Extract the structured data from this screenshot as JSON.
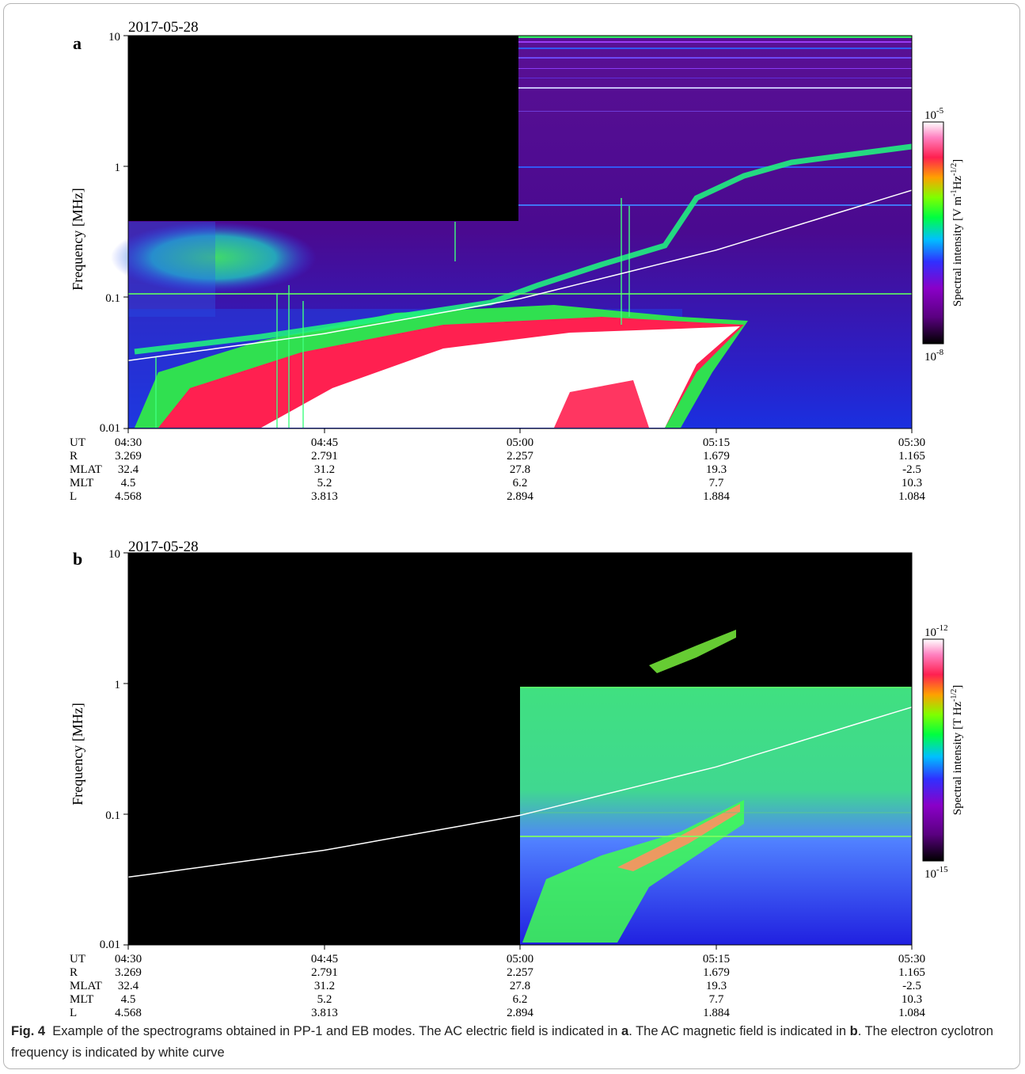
{
  "figure": {
    "caption_label": "Fig. 4",
    "caption_text": "Example of the spectrograms obtained in PP-1 and EB modes. The AC electric field is indicated in ",
    "caption_a": "a",
    "caption_mid": ". The AC magnetic field is indicated in ",
    "caption_b": "b",
    "caption_end": ". The electron cyclotron frequency is indicated by white curve"
  },
  "colors": {
    "background_panel": "#000000",
    "background_fill_a": "#4a0a8c",
    "cyclotron_curve": "#ffffff",
    "colorbar_stops": [
      "#000000",
      "#5a0080",
      "#8a00c8",
      "#3030ff",
      "#00c0ff",
      "#00ff40",
      "#80ff00",
      "#ffa000",
      "#ff2050",
      "#ff80c0",
      "#ffffff"
    ]
  },
  "chart_data": [
    {
      "type": "heatmap",
      "panel_label": "a",
      "date_label": "2017-05-28",
      "ylabel": "Frequency [MHz]",
      "yscale": "log",
      "ylim": [
        0.01,
        10
      ],
      "y_ticks": [
        "0.01",
        "0.1",
        "1",
        "10"
      ],
      "xlim": [
        "04:30",
        "05:30"
      ],
      "colorbar": {
        "label_main": "Spectral intensity [V m",
        "label_sup1": "-1",
        "label_mid": "Hz",
        "label_sup2": "-1/2",
        "label_end": "]",
        "top_base": "10",
        "top_exp": "-5",
        "bottom_base": "10",
        "bottom_exp": "-8"
      },
      "orbit_table": {
        "row_labels": [
          "UT",
          "R",
          "MLAT",
          "MLT",
          "L"
        ],
        "columns": [
          [
            "04:30",
            "3.269",
            "32.4",
            "4.5",
            "4.568"
          ],
          [
            "04:45",
            "2.791",
            "31.2",
            "5.2",
            "3.813"
          ],
          [
            "05:00",
            "2.257",
            "27.8",
            "6.2",
            "2.894"
          ],
          [
            "05:15",
            "1.679",
            "19.3",
            "7.7",
            "1.884"
          ],
          [
            "05:30",
            "1.165",
            "-2.5",
            "10.3",
            "1.084"
          ]
        ]
      },
      "cyclotron_curve": {
        "time_min": [
          0,
          15,
          30,
          45,
          60
        ],
        "freq_mhz": [
          0.033,
          0.053,
          0.098,
          0.23,
          0.66
        ]
      }
    },
    {
      "type": "heatmap",
      "panel_label": "b",
      "date_label": "2017-05-28",
      "ylabel": "Frequency [MHz]",
      "yscale": "log",
      "ylim": [
        0.01,
        10
      ],
      "y_ticks": [
        "0.01",
        "0.1",
        "1",
        "10"
      ],
      "xlim": [
        "04:30",
        "05:30"
      ],
      "colorbar": {
        "label_main": "Spectral intensity [T Hz",
        "label_sup1": "",
        "label_mid": "",
        "label_sup2": "-1/2",
        "label_end": "]",
        "top_base": "10",
        "top_exp": "-12",
        "bottom_base": "10",
        "bottom_exp": "-15"
      },
      "orbit_table": {
        "row_labels": [
          "UT",
          "R",
          "MLAT",
          "MLT",
          "L"
        ],
        "columns": [
          [
            "04:30",
            "3.269",
            "32.4",
            "4.5",
            "4.568"
          ],
          [
            "04:45",
            "2.791",
            "31.2",
            "5.2",
            "3.813"
          ],
          [
            "05:00",
            "2.257",
            "27.8",
            "6.2",
            "2.894"
          ],
          [
            "05:15",
            "1.679",
            "19.3",
            "7.7",
            "1.884"
          ],
          [
            "05:30",
            "1.165",
            "-2.5",
            "10.3",
            "1.084"
          ]
        ]
      },
      "cyclotron_curve": {
        "time_min": [
          0,
          15,
          30,
          45,
          60
        ],
        "freq_mhz": [
          0.033,
          0.053,
          0.098,
          0.23,
          0.66
        ]
      }
    }
  ]
}
